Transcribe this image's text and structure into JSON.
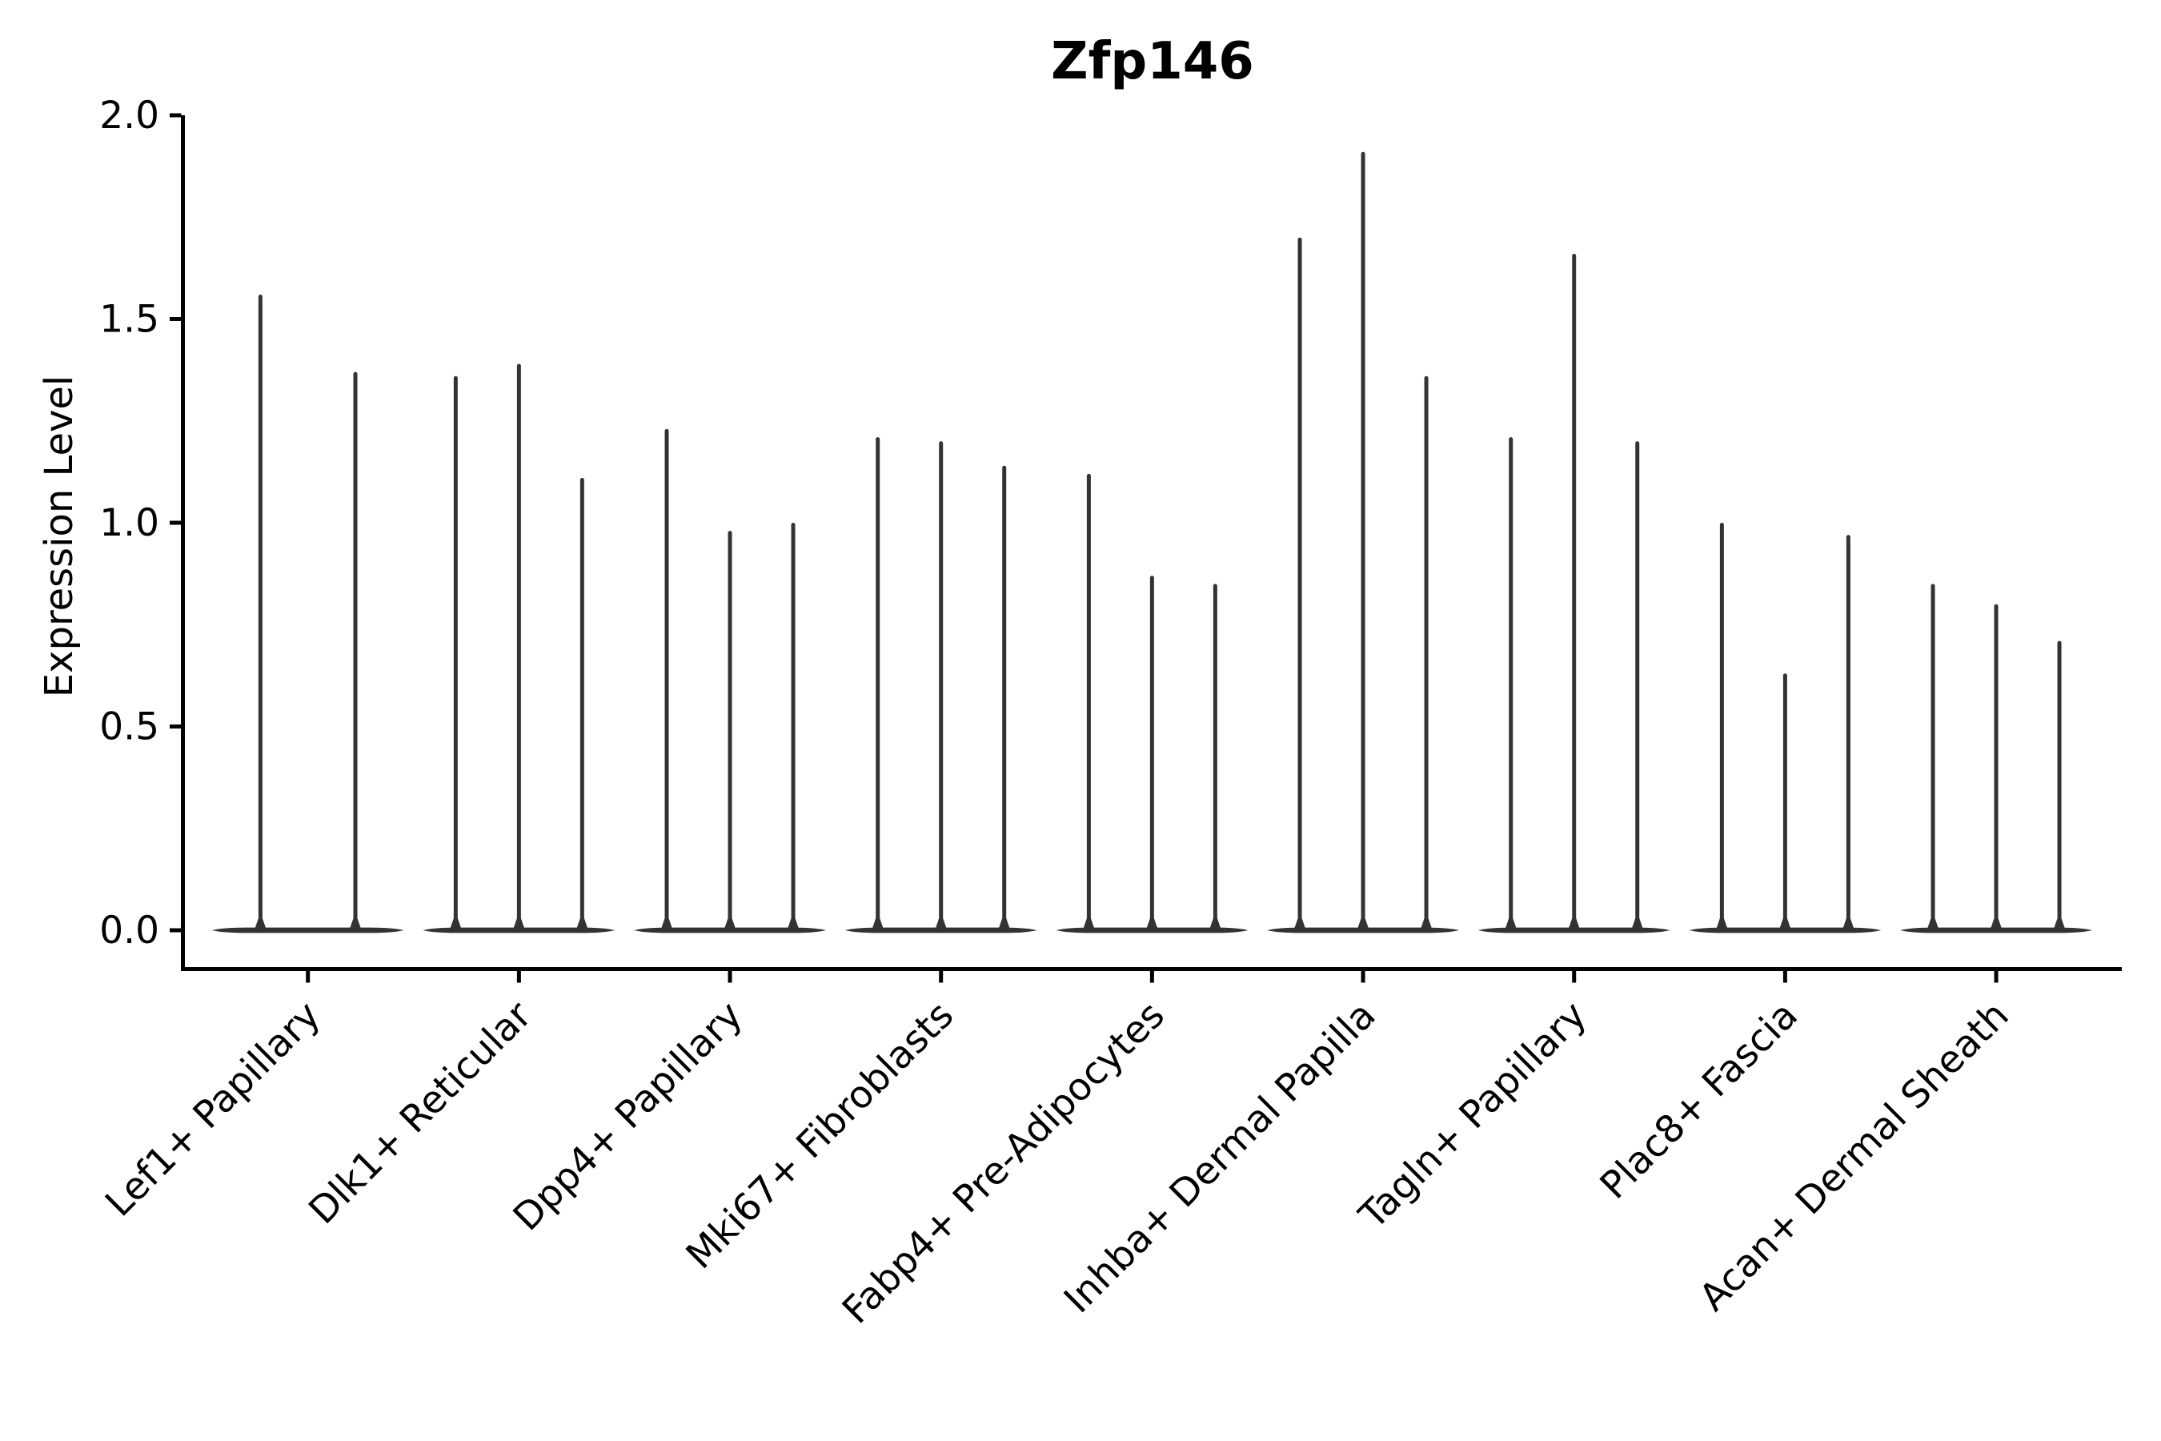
{
  "title": "Zfp146",
  "y_axis": {
    "label": "Expression Level",
    "tick_labels": [
      "0.0",
      "0.5",
      "1.0",
      "1.5",
      "2.0"
    ]
  },
  "x_axis": {
    "categories": [
      "Lef1+ Papillary",
      "Dlk1+ Reticular",
      "Dpp4+ Papillary",
      "Mki67+ Fibroblasts",
      "Fabp4+ Pre-Adipocytes",
      "Inhba+ Dermal Papilla",
      "Tagln+ Papillary",
      "Plac8+ Fascia",
      "Acan+ Dermal Sheath"
    ]
  },
  "colors": {
    "violin_line": "#333333",
    "axis": "#000000",
    "text": "#000000",
    "background": "#ffffff"
  },
  "chart_data": {
    "type": "violin",
    "title": "Zfp146",
    "xlabel": "",
    "ylabel": "Expression Level",
    "ylim": [
      0.0,
      2.0
    ],
    "yticks": [
      0.0,
      0.5,
      1.0,
      1.5,
      2.0
    ],
    "grid": false,
    "legend_position": "none",
    "orientation": "vertical",
    "baseline_value": 0.0,
    "categories": [
      "Lef1+ Papillary",
      "Dlk1+ Reticular",
      "Dpp4+ Papillary",
      "Mki67+ Fibroblasts",
      "Fabp4+ Pre-Adipocytes",
      "Inhba+ Dermal Papilla",
      "Tagln+ Papillary",
      "Plac8+ Fascia",
      "Acan+ Dermal Sheath"
    ],
    "series": [
      {
        "category": "Lef1+ Papillary",
        "violin_max_expression": [
          1.56,
          1.37
        ]
      },
      {
        "category": "Dlk1+ Reticular",
        "violin_max_expression": [
          1.36,
          1.39,
          1.11
        ]
      },
      {
        "category": "Dpp4+ Papillary",
        "violin_max_expression": [
          1.23,
          0.98,
          1.0
        ]
      },
      {
        "category": "Mki67+ Fibroblasts",
        "violin_max_expression": [
          1.21,
          1.2,
          1.14
        ]
      },
      {
        "category": "Fabp4+ Pre-Adipocytes",
        "violin_max_expression": [
          1.12,
          0.87,
          0.85
        ]
      },
      {
        "category": "Inhba+ Dermal Papilla",
        "violin_max_expression": [
          1.7,
          1.91,
          1.36
        ]
      },
      {
        "category": "Tagln+ Papillary",
        "violin_max_expression": [
          1.21,
          1.66,
          1.2
        ]
      },
      {
        "category": "Plac8+ Fascia",
        "violin_max_expression": [
          1.0,
          0.63,
          0.97
        ]
      },
      {
        "category": "Acan+ Dermal Sheath",
        "violin_max_expression": [
          0.85,
          0.8,
          0.71
        ]
      }
    ]
  }
}
